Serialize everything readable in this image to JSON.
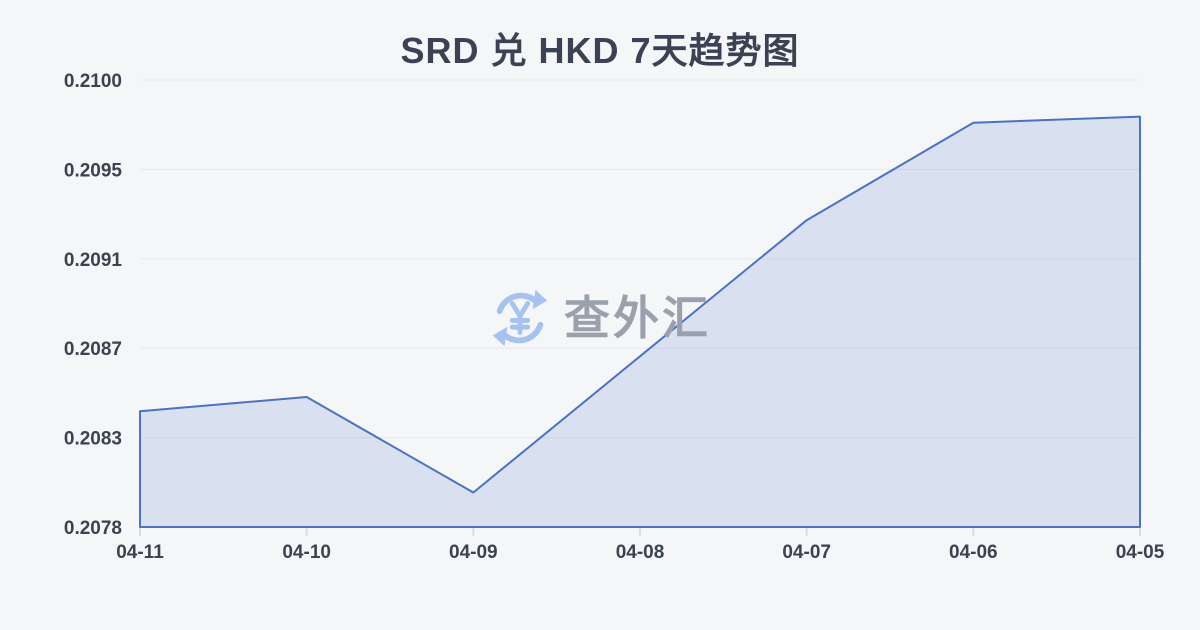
{
  "chart_data": {
    "type": "area",
    "title": "SRD 兑 HKD 7天趋势图",
    "categories": [
      "04-11",
      "04-10",
      "04-09",
      "04-08",
      "04-07",
      "04-06",
      "04-05"
    ],
    "values": [
      0.20837,
      0.20844,
      0.20797,
      0.20864,
      0.20931,
      0.20979,
      0.20982
    ],
    "ylim": [
      0.2078,
      0.21
    ],
    "ytick_labels": [
      "0.2100",
      "0.2095",
      "0.2091",
      "0.2087",
      "0.2083",
      "0.2078"
    ],
    "xlabel": "",
    "ylabel": "",
    "grid": true,
    "legend": false
  },
  "watermark": {
    "text": "查外汇",
    "icon": "currency-exchange-refresh-icon"
  },
  "colors": {
    "background": "#f5f6f8",
    "line": "#4b72c6",
    "fill": "rgba(75,114,198,0.16)",
    "gridline": "#e6e8ec",
    "tick": "#d9dce0",
    "title_text": "#3a4253",
    "axis_text": "#3b434f",
    "watermark_text": "#9aa1ac",
    "watermark_icon": "#a5c2f2"
  }
}
